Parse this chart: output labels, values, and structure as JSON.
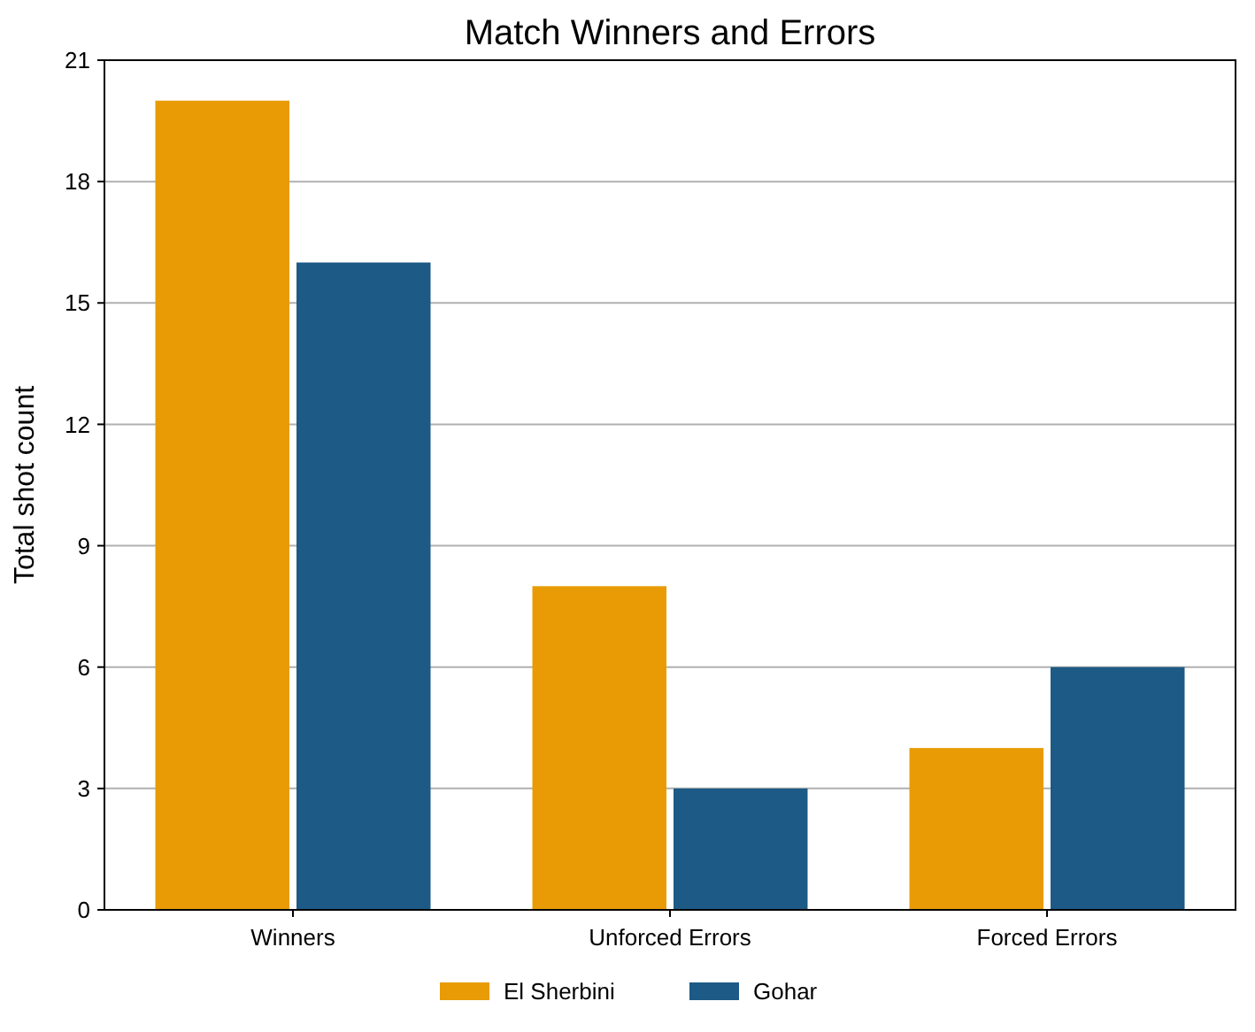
{
  "chart_data": {
    "type": "bar",
    "title": "Match Winners and Errors",
    "ylabel": "Total shot count",
    "categories": [
      "Winners",
      "Unforced Errors",
      "Forced Errors"
    ],
    "series": [
      {
        "name": "El Sherbini",
        "color": "#e89b05",
        "values": [
          20,
          8,
          4
        ]
      },
      {
        "name": "Gohar",
        "color": "#1d5a86",
        "values": [
          16,
          3,
          6
        ]
      }
    ],
    "ylim": [
      0,
      21
    ],
    "yticks": [
      0,
      3,
      6,
      9,
      12,
      15,
      18,
      21
    ],
    "grid": "y",
    "legend": "bottom"
  }
}
